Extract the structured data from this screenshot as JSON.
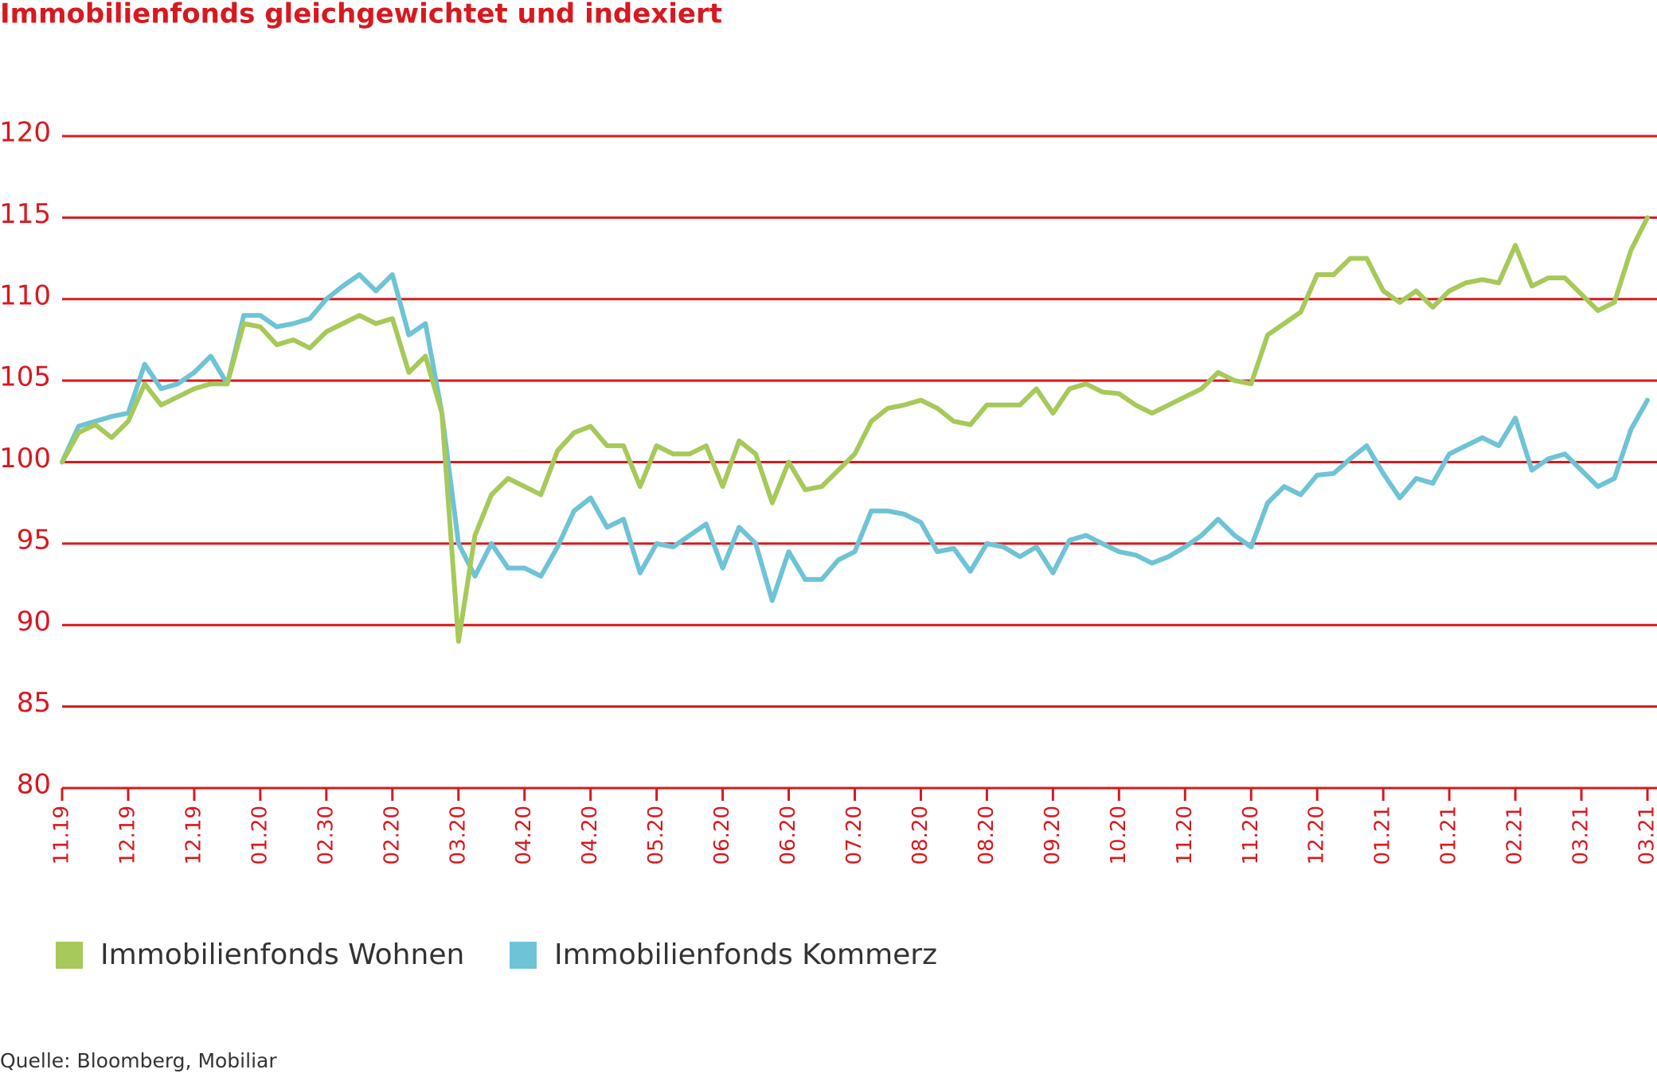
{
  "chart_data": {
    "type": "line",
    "title": "Immobilienfonds gleichgewichtet und indexiert",
    "source": "Quelle: Bloomberg, Mobiliar",
    "categories": [
      "11.19",
      null,
      null,
      null,
      "12.19",
      null,
      null,
      null,
      "12.19",
      null,
      null,
      null,
      "01.20",
      null,
      null,
      null,
      "02.30",
      null,
      null,
      null,
      "02.20",
      null,
      null,
      null,
      "03.20",
      null,
      null,
      null,
      "04.20",
      null,
      null,
      null,
      "04.20",
      null,
      null,
      null,
      "05.20",
      null,
      null,
      null,
      "06.20",
      null,
      null,
      null,
      "06.20",
      null,
      null,
      null,
      "07.20",
      null,
      null,
      null,
      "08.20",
      null,
      null,
      null,
      "08.20",
      null,
      null,
      null,
      "09.20",
      null,
      null,
      null,
      "10.20",
      null,
      null,
      null,
      "11.20",
      null,
      null,
      null,
      "11.20",
      null,
      null,
      null,
      "12.20",
      null,
      null,
      null,
      "01.21",
      null,
      null,
      null,
      "01.21",
      null,
      null,
      null,
      "02.21",
      null,
      null,
      null,
      "03.21",
      null,
      null,
      null,
      "03.21"
    ],
    "series": [
      {
        "name": "Immobilienfonds Wohnen",
        "color": "#a6c95a",
        "values": [
          100,
          101.8,
          102.3,
          101.5,
          102.5,
          104.8,
          103.5,
          104,
          104.5,
          104.8,
          104.8,
          108.5,
          108.3,
          107.2,
          107.5,
          107,
          108,
          108.5,
          109,
          108.5,
          108.8,
          105.5,
          106.5,
          103,
          89,
          95.5,
          98,
          99,
          98.5,
          98,
          100.7,
          101.8,
          102.2,
          101,
          101,
          98.5,
          101,
          100.5,
          100.5,
          101,
          98.5,
          101.3,
          100.5,
          97.5,
          100,
          98.3,
          98.5,
          99.5,
          100.5,
          102.5,
          103.3,
          103.5,
          103.8,
          103.3,
          102.5,
          102.3,
          103.5,
          103.5,
          103.5,
          104.5,
          103,
          104.5,
          104.8,
          104.3,
          104.2,
          103.5,
          103,
          103.5,
          104,
          104.5,
          105.5,
          105,
          104.8,
          107.8,
          108.5,
          109.2,
          111.5,
          111.5,
          112.5,
          112.5,
          110.5,
          109.8,
          110.5,
          109.5,
          110.5,
          111,
          111.2,
          111,
          113.3,
          110.8,
          111.3,
          111.3,
          110.3,
          109.3,
          109.8,
          113,
          115
        ]
      },
      {
        "name": "Immobilienfonds Kommerz",
        "color": "#6ec3d6",
        "values": [
          100,
          102.2,
          102.5,
          102.8,
          103,
          106,
          104.5,
          104.8,
          105.5,
          106.5,
          104.8,
          109,
          109,
          108.3,
          108.5,
          108.8,
          110,
          110.8,
          111.5,
          110.5,
          111.5,
          107.8,
          108.5,
          103,
          95,
          93,
          95,
          93.5,
          93.5,
          93,
          94.8,
          97,
          97.8,
          96,
          96.5,
          93.2,
          95,
          94.8,
          95.5,
          96.2,
          93.5,
          96,
          95,
          91.5,
          94.5,
          92.8,
          92.8,
          94,
          94.5,
          97,
          97,
          96.8,
          96.3,
          94.5,
          94.7,
          93.3,
          95,
          94.8,
          94.2,
          94.8,
          93.2,
          95.2,
          95.5,
          95,
          94.5,
          94.3,
          93.8,
          94.2,
          94.8,
          95.5,
          96.5,
          95.5,
          94.8,
          97.5,
          98.5,
          98,
          99.2,
          99.3,
          100.2,
          101,
          99.3,
          97.8,
          99,
          98.7,
          100.5,
          101,
          101.5,
          101,
          102.7,
          99.5,
          100.2,
          100.5,
          99.5,
          98.5,
          99,
          102,
          103.8
        ]
      }
    ],
    "ylim": [
      80,
      120
    ],
    "yticks": [
      80,
      85,
      90,
      95,
      100,
      105,
      110,
      115,
      120
    ],
    "grid": true
  }
}
